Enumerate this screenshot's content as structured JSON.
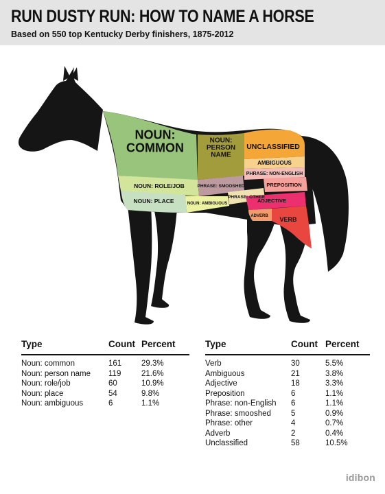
{
  "header": {
    "title": "RUN DUSTY RUN: HOW TO NAME A HORSE",
    "subtitle": "Based on 550 top Kentucky Derby finishers, 1875-2012"
  },
  "colors": {
    "horse": "#151515",
    "noun_common": "#98c47b",
    "noun_person": "#a39c3c",
    "noun_role": "#d3e59a",
    "noun_place": "#c8e0c2",
    "noun_ambiguous": "#ecf2a2",
    "phrase_smooshed": "#bd9aa0",
    "phrase_other": "#f0e2b0",
    "unclassified": "#f4a636",
    "ambiguous": "#f6d28c",
    "phrase_non_english": "#f4bdb8",
    "preposition": "#f3a19a",
    "adjective": "#ec2f6e",
    "adverb": "#f29b6c",
    "verb": "#e8463e"
  },
  "chart_data": {
    "type": "table",
    "title": "RUN DUSTY RUN: HOW TO NAME A HORSE",
    "subtitle": "Based on 550 top Kentucky Derby finishers, 1875-2012",
    "columns": [
      "Type",
      "Count",
      "Percent"
    ],
    "left_table": [
      {
        "type": "Noun: common",
        "count": "161",
        "percent": "29.3%"
      },
      {
        "type": "Noun: person name",
        "count": "119",
        "percent": "21.6%"
      },
      {
        "type": "Noun: role/job",
        "count": "60",
        "percent": "10.9%"
      },
      {
        "type": "Noun: place",
        "count": "54",
        "percent": "9.8%"
      },
      {
        "type": "Noun: ambiguous",
        "count": "6",
        "percent": "1.1%"
      }
    ],
    "right_table": [
      {
        "type": "Verb",
        "count": "30",
        "percent": "5.5%"
      },
      {
        "type": "Ambiguous",
        "count": "21",
        "percent": "3.8%"
      },
      {
        "type": "Adjective",
        "count": "18",
        "percent": "3.3%"
      },
      {
        "type": "Preposition",
        "count": "6",
        "percent": "1.1%"
      },
      {
        "type": "Phrase: non-English",
        "count": "6",
        "percent": "1.1%"
      },
      {
        "type": "Phrase: smooshed",
        "count": "5",
        "percent": "0.9%"
      },
      {
        "type": "Phrase: other",
        "count": "4",
        "percent": "0.7%"
      },
      {
        "type": "Adverb",
        "count": "2",
        "percent": "0.4%"
      },
      {
        "type": "Unclassified",
        "count": "58",
        "percent": "10.5%"
      }
    ],
    "regions": [
      {
        "key": "noun_common",
        "lines": [
          "NOUN:",
          "COMMON"
        ]
      },
      {
        "key": "noun_person",
        "lines": [
          "NOUN:",
          "PERSON",
          "NAME"
        ]
      },
      {
        "key": "noun_role",
        "lines": [
          "NOUN: ROLE/JOB"
        ]
      },
      {
        "key": "noun_place",
        "lines": [
          "NOUN: PLACE"
        ]
      },
      {
        "key": "noun_ambiguous",
        "lines": [
          "NOUN: AMBIGUOUS"
        ]
      },
      {
        "key": "phrase_smooshed",
        "lines": [
          "PHRASE: SMOOSHED"
        ]
      },
      {
        "key": "phrase_other",
        "lines": [
          "PHRASE: OTHER"
        ]
      },
      {
        "key": "unclassified",
        "lines": [
          "UNCLASSIFIED"
        ]
      },
      {
        "key": "ambiguous",
        "lines": [
          "AMBIGUOUS"
        ]
      },
      {
        "key": "phrase_non_english",
        "lines": [
          "PHRASE: NON-ENGLISH"
        ]
      },
      {
        "key": "preposition",
        "lines": [
          "PREPOSITION"
        ]
      },
      {
        "key": "adjective",
        "lines": [
          "ADJECTIVE"
        ]
      },
      {
        "key": "adverb",
        "lines": [
          "ADVERB"
        ]
      },
      {
        "key": "verb",
        "lines": [
          "VERB"
        ]
      }
    ]
  },
  "brand": "idibon"
}
